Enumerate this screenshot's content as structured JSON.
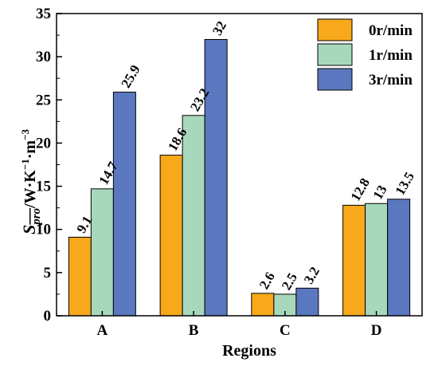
{
  "chart_data": {
    "type": "bar",
    "categories": [
      "A",
      "B",
      "C",
      "D"
    ],
    "series": [
      {
        "name": "0r/min",
        "color": "#f7a81b",
        "values": [
          9.1,
          18.6,
          2.6,
          12.8
        ]
      },
      {
        "name": "1r/min",
        "color": "#a8d8bc",
        "values": [
          14.7,
          23.2,
          2.5,
          13
        ]
      },
      {
        "name": "3r/min",
        "color": "#5b77c0",
        "values": [
          25.9,
          32,
          3.2,
          13.5
        ]
      }
    ],
    "data_labels": [
      [
        "9.1",
        "18.6",
        "2.6",
        "12.8"
      ],
      [
        "14.7",
        "23.2",
        "2.5",
        "13"
      ],
      [
        "25.9",
        "32",
        "3.2",
        "13.5"
      ]
    ],
    "title": "",
    "xlabel": "Regions",
    "ylabel": {
      "main": "S",
      "subscript": "pro",
      "rest": "/W·K",
      "sup1": "−1",
      "sep": "·m",
      "sup2": "−3"
    },
    "ylim": [
      0,
      35
    ],
    "yticks": [
      0,
      5,
      10,
      15,
      20,
      25,
      30,
      35
    ],
    "legend_position": "top-right",
    "grid": false
  }
}
